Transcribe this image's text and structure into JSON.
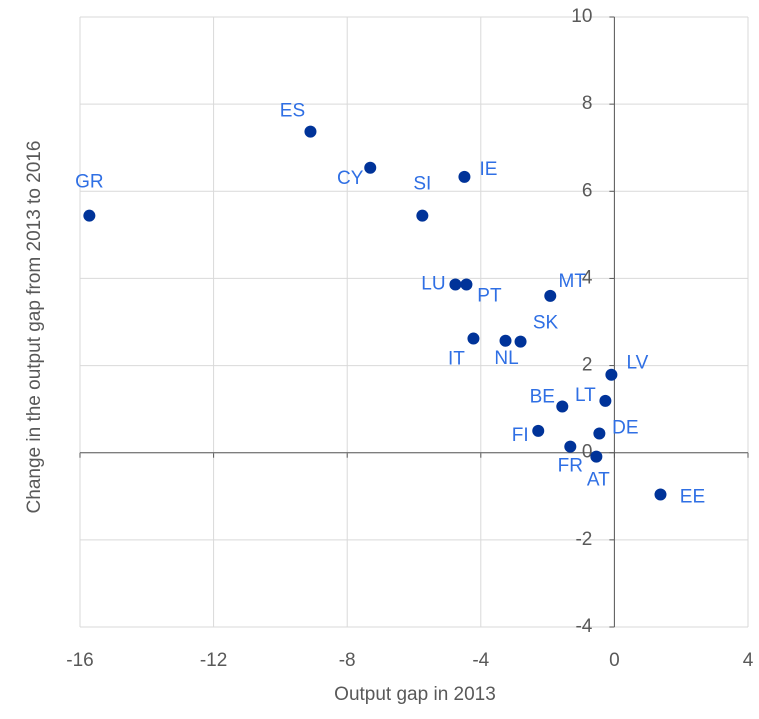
{
  "chart_data": {
    "type": "scatter",
    "x_label": "Output gap in 2013",
    "y_label": "Change in the output gap from 2013 to 2016",
    "color": "#003399",
    "label_color": "#2f6fe4",
    "grid": true,
    "xlim": [
      -16,
      4
    ],
    "xticks": [
      -16,
      -12,
      -8,
      -4,
      0,
      4
    ],
    "ylim": [
      -4,
      10
    ],
    "yticks": [
      -4,
      -2,
      0,
      2,
      4,
      6,
      8,
      10
    ],
    "labels": [
      "GR",
      "ES",
      "CY",
      "SI",
      "IE",
      "LU",
      "PT",
      "MT",
      "IT",
      "NL",
      "SK",
      "LV",
      "LT",
      "BE",
      "DE",
      "FI",
      "FR",
      "AT",
      "EE"
    ],
    "x": [
      -15.72,
      -9.1,
      -7.31,
      -5.75,
      -4.49,
      -4.76,
      -4.43,
      -1.92,
      -4.22,
      -3.26,
      -2.81,
      -0.09,
      -0.27,
      -1.56,
      -0.45,
      -2.28,
      -1.32,
      -0.54,
      1.38
    ],
    "y": [
      5.44,
      7.37,
      6.54,
      5.44,
      6.33,
      3.86,
      3.86,
      3.6,
      2.62,
      2.57,
      2.55,
      1.79,
      1.19,
      1.06,
      0.44,
      0.5,
      0.14,
      -0.09,
      -0.96
    ]
  }
}
